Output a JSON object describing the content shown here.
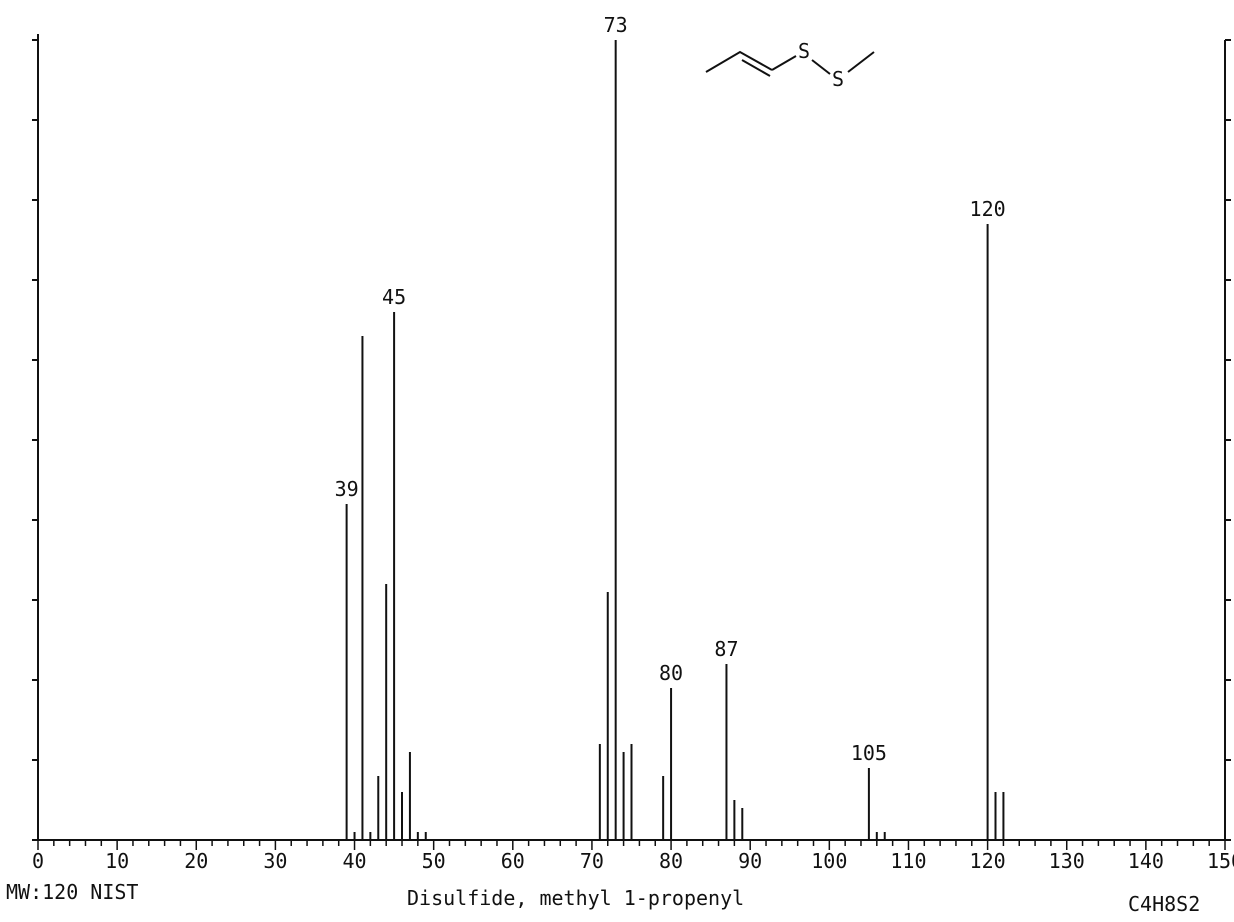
{
  "chart_data": {
    "type": "bar",
    "title": "Disulfide, methyl 1-propenyl",
    "xlabel": "",
    "ylabel": "",
    "xlim": [
      0,
      150
    ],
    "ylim": [
      0,
      100
    ],
    "x_ticks": [
      0,
      10,
      20,
      30,
      40,
      50,
      60,
      70,
      80,
      90,
      100,
      110,
      120,
      130,
      140,
      150
    ],
    "grid": false,
    "peaks": [
      {
        "mz": 39,
        "intensity": 42,
        "label": "39"
      },
      {
        "mz": 40,
        "intensity": 1
      },
      {
        "mz": 41,
        "intensity": 63
      },
      {
        "mz": 42,
        "intensity": 1
      },
      {
        "mz": 43,
        "intensity": 8
      },
      {
        "mz": 44,
        "intensity": 32
      },
      {
        "mz": 45,
        "intensity": 66,
        "label": "45"
      },
      {
        "mz": 46,
        "intensity": 6
      },
      {
        "mz": 47,
        "intensity": 11
      },
      {
        "mz": 48,
        "intensity": 1
      },
      {
        "mz": 49,
        "intensity": 1
      },
      {
        "mz": 71,
        "intensity": 12
      },
      {
        "mz": 72,
        "intensity": 31
      },
      {
        "mz": 73,
        "intensity": 100,
        "label": "73"
      },
      {
        "mz": 74,
        "intensity": 11
      },
      {
        "mz": 75,
        "intensity": 12
      },
      {
        "mz": 79,
        "intensity": 8
      },
      {
        "mz": 80,
        "intensity": 19,
        "label": "80"
      },
      {
        "mz": 87,
        "intensity": 22,
        "label": "87"
      },
      {
        "mz": 88,
        "intensity": 5
      },
      {
        "mz": 89,
        "intensity": 4
      },
      {
        "mz": 105,
        "intensity": 9,
        "label": "105"
      },
      {
        "mz": 106,
        "intensity": 1
      },
      {
        "mz": 107,
        "intensity": 1
      },
      {
        "mz": 120,
        "intensity": 77,
        "label": "120"
      },
      {
        "mz": 121,
        "intensity": 6
      },
      {
        "mz": 122,
        "intensity": 6
      }
    ]
  },
  "footer": {
    "left": "MW:120 NIST",
    "center": "Disulfide, methyl 1-propenyl",
    "right": "C4H8S2"
  },
  "structure": {
    "atom_1": "S",
    "atom_2": "S"
  },
  "colors": {
    "ink": "#111111",
    "background": "#ffffff"
  }
}
